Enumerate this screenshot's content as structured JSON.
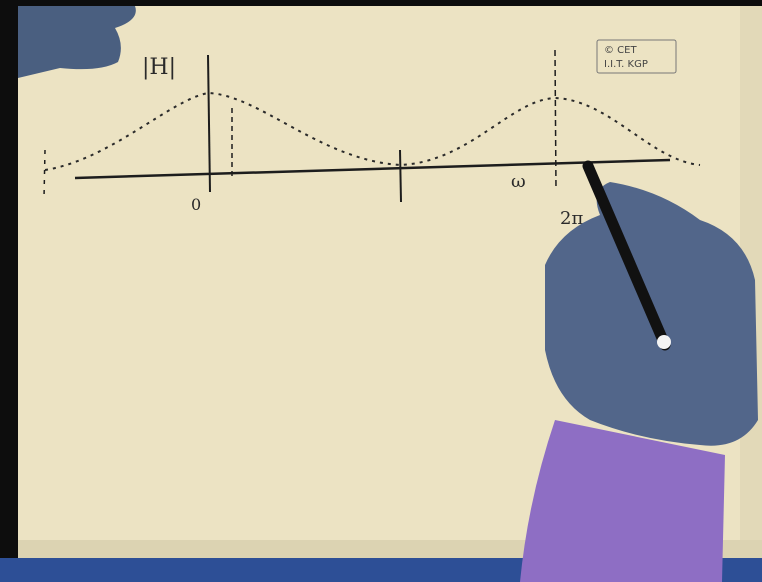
{
  "watermark": {
    "line1": "© CET",
    "line2": "I.I.T. KGP"
  },
  "labels": {
    "magnitude": "|H|",
    "origin": "0",
    "omega": "ω",
    "two_pi": "2π"
  }
}
